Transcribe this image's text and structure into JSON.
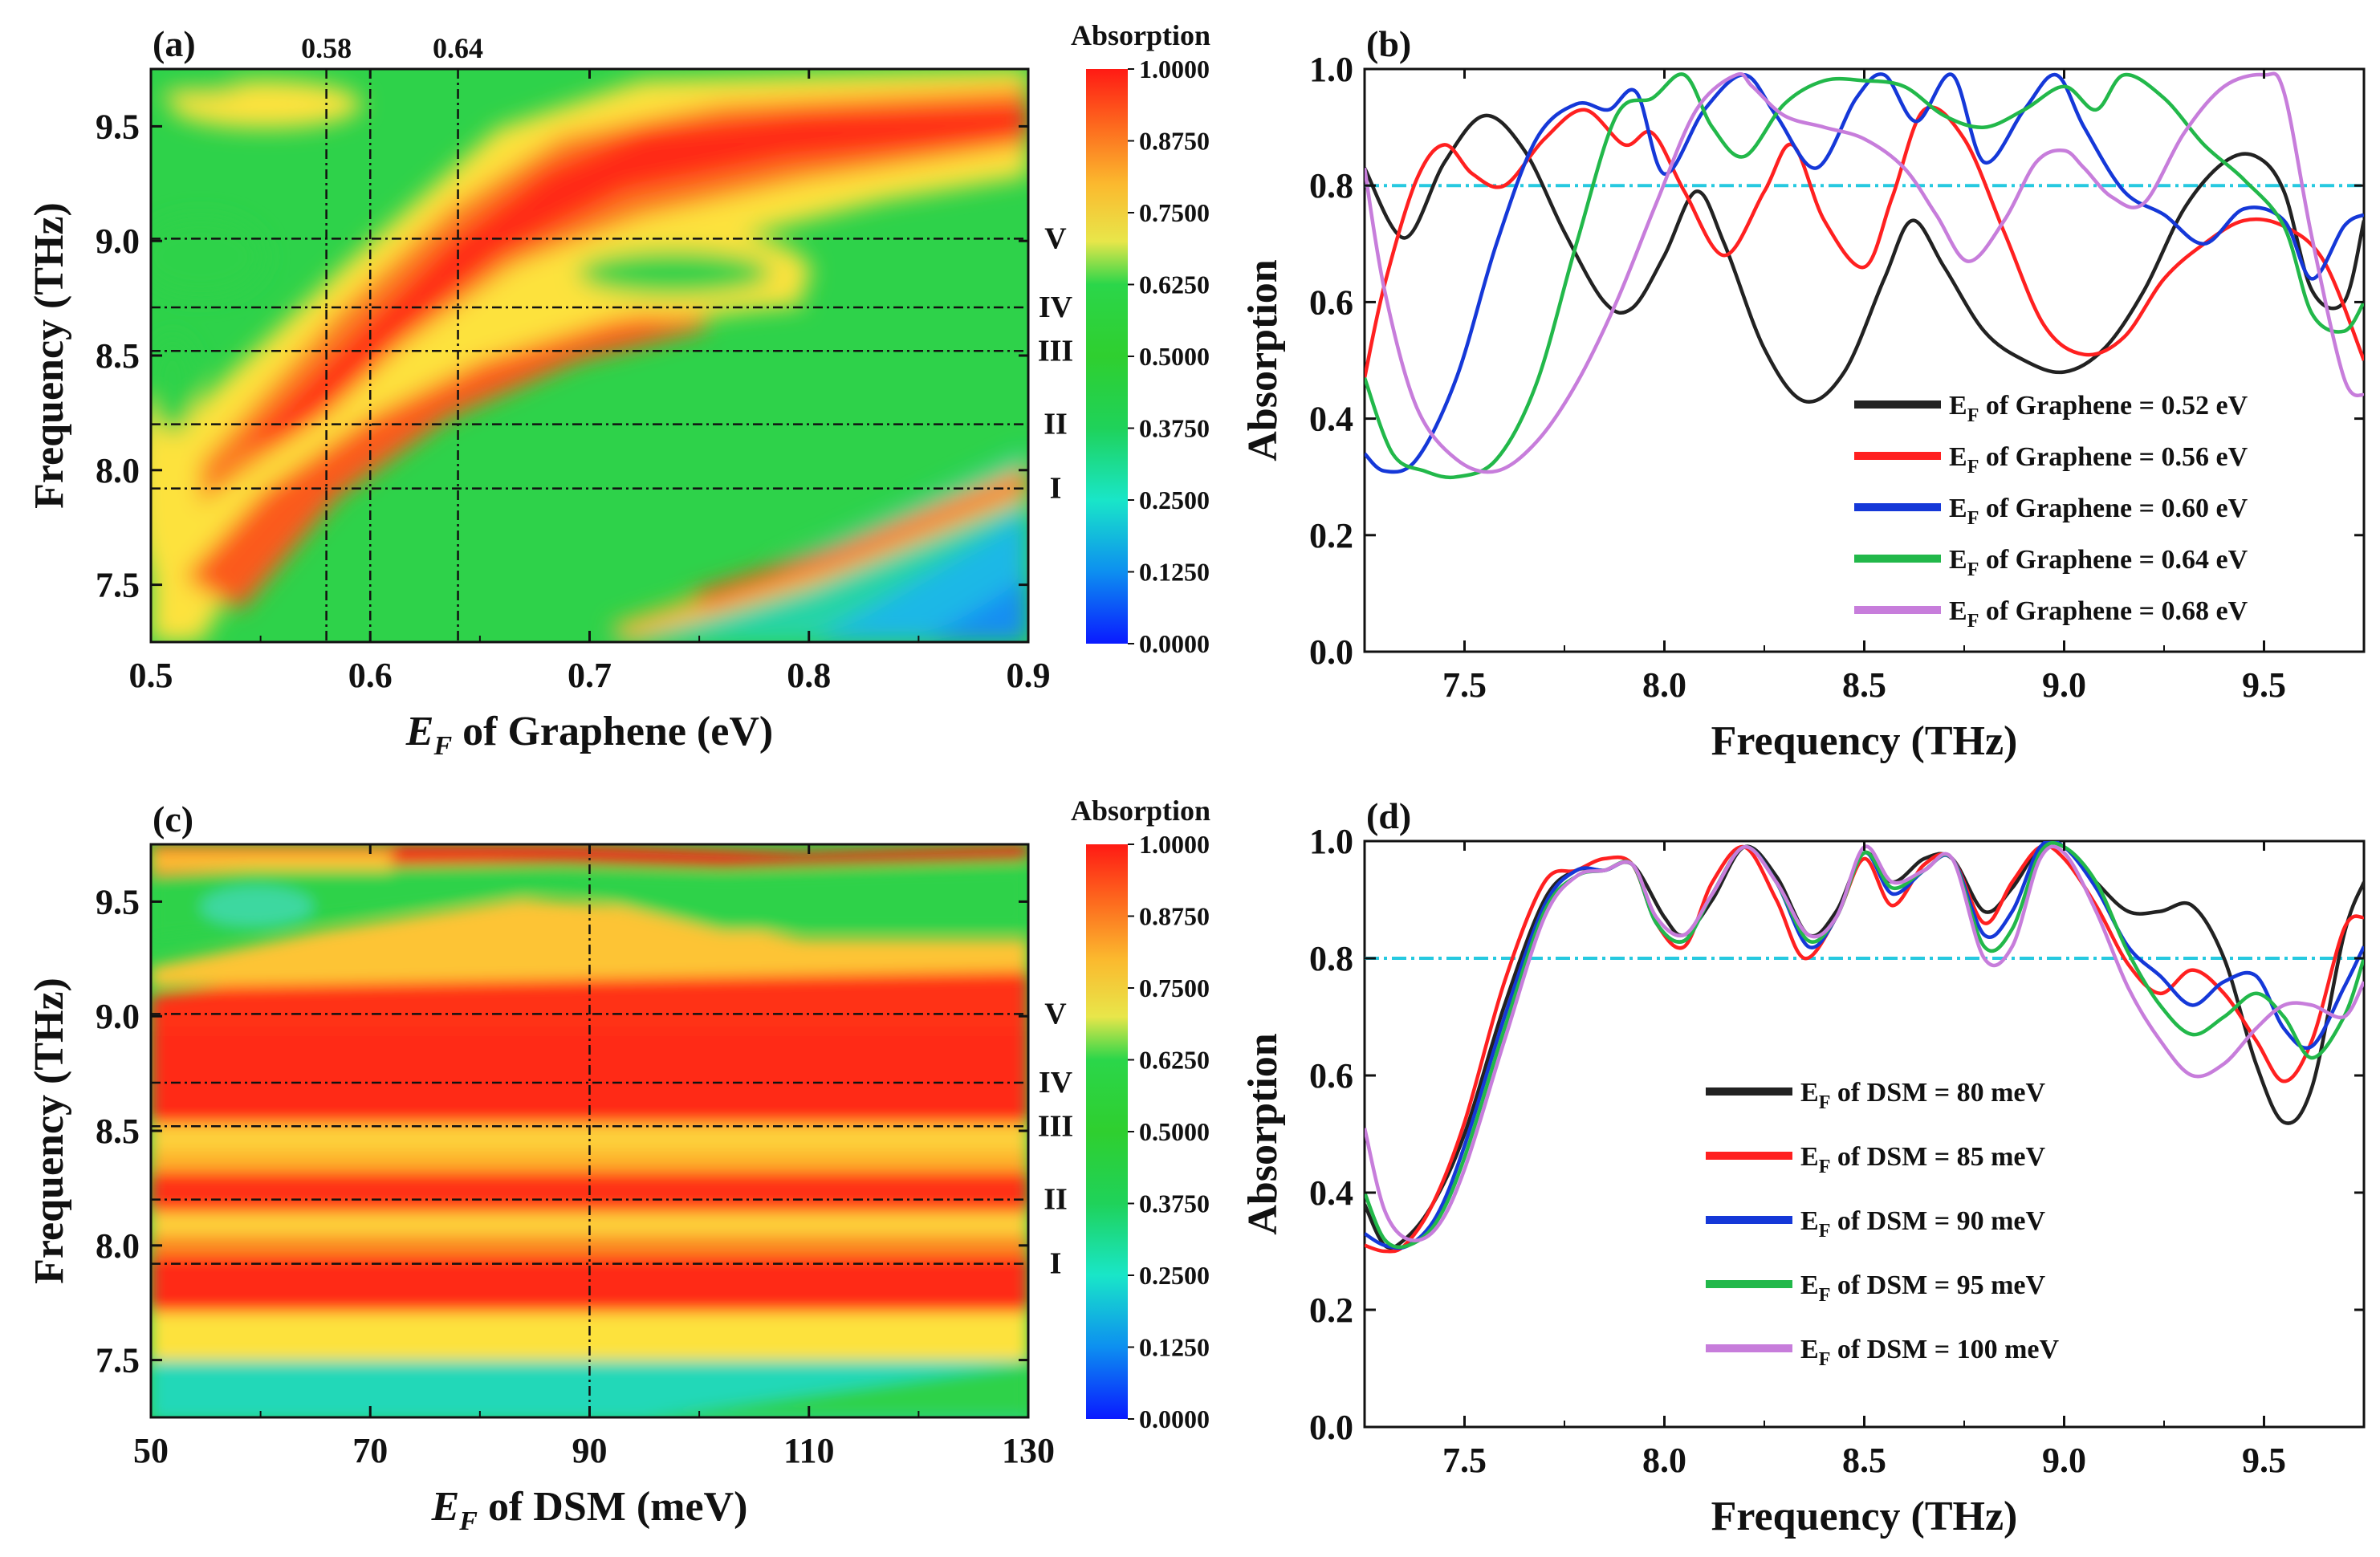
{
  "chart_data": [
    {
      "id": "a",
      "type": "heatmap",
      "panel_label": "(a)",
      "title": "",
      "xlabel": "E_F of Graphene (eV)",
      "xlabel_parts": {
        "sym": "E",
        "sub": "F",
        "rest": " of Graphene (eV)"
      },
      "ylabel": "Frequency (THz)",
      "xlim": [
        0.5,
        0.9
      ],
      "ylim": [
        7.25,
        9.75
      ],
      "x_ticks": [
        "0.5",
        "0.6",
        "0.7",
        "0.8",
        "0.9"
      ],
      "y_ticks": [
        "7.5",
        "8.0",
        "8.5",
        "9.0",
        "9.5"
      ],
      "colorbar": {
        "title": "Absorption",
        "range": [
          0,
          1
        ],
        "ticks": [
          "0.0000",
          "0.1250",
          "0.2500",
          "0.3750",
          "0.5000",
          "0.6250",
          "0.7500",
          "0.8750",
          "1.0000"
        ],
        "colors": [
          "#0a1aff",
          "#0d8ff0",
          "#19e6c8",
          "#1fd25a",
          "#2fcf2f",
          "#e8e64a",
          "#fbb92e",
          "#fd6a1e",
          "#ff1a14"
        ]
      },
      "vertical_lines": [
        {
          "x": 0.58,
          "label": "0.58"
        },
        {
          "x": 0.6,
          "label": ""
        },
        {
          "x": 0.64,
          "label": "0.64"
        }
      ],
      "horizontal_lines": [
        {
          "y": 7.92,
          "label": "I"
        },
        {
          "y": 8.2,
          "label": "II"
        },
        {
          "y": 8.52,
          "label": "III"
        },
        {
          "y": 8.71,
          "label": "IV"
        },
        {
          "y": 9.01,
          "label": "V"
        }
      ]
    },
    {
      "id": "b",
      "type": "line",
      "panel_label": "(b)",
      "xlabel": "Frequency (THz)",
      "ylabel": "Absorption",
      "xlim": [
        7.25,
        9.75
      ],
      "ylim": [
        0,
        1
      ],
      "x_ticks": [
        "7.5",
        "8.0",
        "8.5",
        "9.0",
        "9.5"
      ],
      "y_ticks": [
        "0.0",
        "0.2",
        "0.4",
        "0.6",
        "0.8",
        "1.0"
      ],
      "reference_line": {
        "y": 0.8,
        "color": "#26c9e0"
      },
      "legend_position": "lower-right",
      "series": [
        {
          "name": "E_F of Graphene = 0.52 eV",
          "legend_text": " of Graphene = 0.52 eV",
          "color": "#222222",
          "x": [
            7.25,
            7.35,
            7.45,
            7.55,
            7.65,
            7.75,
            7.85,
            7.92,
            8.0,
            8.08,
            8.15,
            8.25,
            8.35,
            8.45,
            8.55,
            8.62,
            8.7,
            8.8,
            8.9,
            9.0,
            9.1,
            9.2,
            9.3,
            9.4,
            9.48,
            9.55,
            9.62,
            9.7,
            9.75
          ],
          "y": [
            0.83,
            0.71,
            0.84,
            0.92,
            0.86,
            0.72,
            0.6,
            0.59,
            0.68,
            0.79,
            0.7,
            0.52,
            0.43,
            0.48,
            0.64,
            0.74,
            0.66,
            0.55,
            0.5,
            0.48,
            0.52,
            0.62,
            0.76,
            0.84,
            0.85,
            0.79,
            0.62,
            0.6,
            0.74
          ]
        },
        {
          "name": "E_F of Graphene = 0.56 eV",
          "legend_text": " of Graphene = 0.56 eV",
          "color": "#ff2020",
          "x": [
            7.25,
            7.3,
            7.38,
            7.45,
            7.52,
            7.6,
            7.7,
            7.8,
            7.9,
            7.97,
            8.05,
            8.15,
            8.25,
            8.32,
            8.4,
            8.5,
            8.57,
            8.65,
            8.75,
            8.85,
            8.95,
            9.05,
            9.15,
            9.25,
            9.35,
            9.45,
            9.55,
            9.65,
            9.75
          ],
          "y": [
            0.47,
            0.63,
            0.81,
            0.87,
            0.82,
            0.8,
            0.88,
            0.93,
            0.87,
            0.89,
            0.79,
            0.68,
            0.79,
            0.87,
            0.74,
            0.66,
            0.78,
            0.93,
            0.88,
            0.72,
            0.56,
            0.51,
            0.54,
            0.64,
            0.7,
            0.74,
            0.73,
            0.67,
            0.5
          ]
        },
        {
          "name": "E_F of Graphene = 0.60 eV",
          "legend_text": " of Graphene = 0.60 eV",
          "color": "#1538d8",
          "x": [
            7.25,
            7.3,
            7.38,
            7.48,
            7.58,
            7.68,
            7.78,
            7.86,
            7.93,
            8.0,
            8.1,
            8.2,
            8.28,
            8.38,
            8.48,
            8.55,
            8.63,
            8.72,
            8.8,
            8.9,
            8.98,
            9.05,
            9.15,
            9.25,
            9.35,
            9.45,
            9.55,
            9.62,
            9.7,
            9.75
          ],
          "y": [
            0.34,
            0.31,
            0.33,
            0.47,
            0.7,
            0.88,
            0.94,
            0.93,
            0.96,
            0.82,
            0.93,
            0.99,
            0.92,
            0.83,
            0.95,
            0.99,
            0.91,
            0.99,
            0.84,
            0.93,
            0.99,
            0.9,
            0.79,
            0.75,
            0.7,
            0.76,
            0.74,
            0.64,
            0.73,
            0.75
          ]
        },
        {
          "name": "E_F of Graphene = 0.64 eV",
          "legend_text": " of Graphene = 0.64 eV",
          "color": "#22b84a",
          "x": [
            7.25,
            7.32,
            7.4,
            7.48,
            7.58,
            7.68,
            7.78,
            7.88,
            7.97,
            8.05,
            8.12,
            8.2,
            8.3,
            8.4,
            8.5,
            8.6,
            8.7,
            8.8,
            8.9,
            9.0,
            9.08,
            9.15,
            9.25,
            9.35,
            9.45,
            9.55,
            9.62,
            9.7,
            9.75
          ],
          "y": [
            0.47,
            0.34,
            0.31,
            0.3,
            0.33,
            0.46,
            0.7,
            0.92,
            0.95,
            0.99,
            0.9,
            0.85,
            0.94,
            0.98,
            0.98,
            0.97,
            0.92,
            0.9,
            0.93,
            0.97,
            0.93,
            0.99,
            0.95,
            0.87,
            0.81,
            0.73,
            0.58,
            0.55,
            0.6
          ]
        },
        {
          "name": "E_F of Graphene = 0.68 eV",
          "legend_text": " of Graphene = 0.68 eV",
          "color": "#c77ddb",
          "x": [
            7.25,
            7.3,
            7.38,
            7.48,
            7.58,
            7.68,
            7.78,
            7.88,
            7.98,
            8.08,
            8.18,
            8.22,
            8.3,
            8.4,
            8.5,
            8.6,
            8.68,
            8.76,
            8.85,
            8.93,
            9.0,
            9.05,
            9.12,
            9.2,
            9.3,
            9.4,
            9.5,
            9.55,
            9.62,
            9.7,
            9.75
          ],
          "y": [
            0.83,
            0.62,
            0.42,
            0.33,
            0.31,
            0.36,
            0.46,
            0.6,
            0.77,
            0.93,
            0.99,
            0.97,
            0.92,
            0.9,
            0.88,
            0.83,
            0.75,
            0.67,
            0.74,
            0.84,
            0.86,
            0.83,
            0.78,
            0.77,
            0.89,
            0.97,
            0.99,
            0.96,
            0.71,
            0.47,
            0.44
          ]
        }
      ]
    },
    {
      "id": "c",
      "type": "heatmap",
      "panel_label": "(c)",
      "xlabel": "E_F of DSM (meV)",
      "xlabel_parts": {
        "sym": "E",
        "sub": "F",
        "rest": " of DSM (meV)"
      },
      "ylabel": "Frequency (THz)",
      "xlim": [
        50,
        130
      ],
      "ylim": [
        7.25,
        9.75
      ],
      "x_ticks": [
        "50",
        "70",
        "90",
        "110",
        "130"
      ],
      "y_ticks": [
        "7.5",
        "8.0",
        "8.5",
        "9.0",
        "9.5"
      ],
      "colorbar": {
        "title": "Absorption",
        "range": [
          0,
          1
        ],
        "ticks": [
          "0.0000",
          "0.1250",
          "0.2500",
          "0.3750",
          "0.5000",
          "0.6250",
          "0.7500",
          "0.8750",
          "1.0000"
        ],
        "colors": [
          "#0a1aff",
          "#0d8ff0",
          "#19e6c8",
          "#1fd25a",
          "#2fcf2f",
          "#e8e64a",
          "#fbb92e",
          "#fd6a1e",
          "#ff1a14"
        ]
      },
      "vertical_lines": [
        {
          "x": 90,
          "label": ""
        }
      ],
      "horizontal_lines": [
        {
          "y": 7.92,
          "label": "I"
        },
        {
          "y": 8.2,
          "label": "II"
        },
        {
          "y": 8.52,
          "label": "III"
        },
        {
          "y": 8.71,
          "label": "IV"
        },
        {
          "y": 9.01,
          "label": "V"
        }
      ]
    },
    {
      "id": "d",
      "type": "line",
      "panel_label": "(d)",
      "xlabel": "Frequency (THz)",
      "ylabel": "Absorption",
      "xlim": [
        7.25,
        9.75
      ],
      "ylim": [
        0,
        1
      ],
      "x_ticks": [
        "7.5",
        "8.0",
        "8.5",
        "9.0",
        "9.5"
      ],
      "y_ticks": [
        "0.0",
        "0.2",
        "0.4",
        "0.6",
        "0.8",
        "1.0"
      ],
      "reference_line": {
        "y": 0.8,
        "color": "#26c9e0"
      },
      "legend_position": "lower-right",
      "series": [
        {
          "name": "E_F of DSM = 80 meV",
          "legend_text": " of DSM = 80 meV",
          "color": "#222222",
          "x": [
            7.25,
            7.3,
            7.35,
            7.42,
            7.5,
            7.6,
            7.7,
            7.78,
            7.85,
            7.92,
            8.0,
            8.05,
            8.12,
            8.2,
            8.28,
            8.36,
            8.43,
            8.5,
            8.57,
            8.65,
            8.72,
            8.8,
            8.87,
            8.94,
            9.0,
            9.08,
            9.16,
            9.24,
            9.32,
            9.4,
            9.48,
            9.55,
            9.62,
            9.7,
            9.75
          ],
          "y": [
            0.38,
            0.31,
            0.32,
            0.38,
            0.5,
            0.72,
            0.9,
            0.95,
            0.95,
            0.96,
            0.87,
            0.84,
            0.9,
            0.99,
            0.94,
            0.84,
            0.88,
            0.98,
            0.93,
            0.97,
            0.97,
            0.88,
            0.92,
            0.99,
            0.99,
            0.93,
            0.88,
            0.88,
            0.89,
            0.8,
            0.62,
            0.52,
            0.58,
            0.84,
            0.93
          ]
        },
        {
          "name": "E_F of DSM = 85 meV",
          "legend_text": " of DSM = 85 meV",
          "color": "#ff2020",
          "x": [
            7.25,
            7.3,
            7.35,
            7.42,
            7.5,
            7.6,
            7.7,
            7.78,
            7.85,
            7.92,
            7.98,
            8.05,
            8.12,
            8.2,
            8.28,
            8.35,
            8.43,
            8.5,
            8.57,
            8.65,
            8.72,
            8.8,
            8.87,
            8.94,
            9.0,
            9.08,
            9.16,
            9.24,
            9.32,
            9.4,
            9.48,
            9.55,
            9.62,
            9.7,
            9.75
          ],
          "y": [
            0.31,
            0.3,
            0.31,
            0.38,
            0.52,
            0.76,
            0.93,
            0.95,
            0.97,
            0.96,
            0.86,
            0.82,
            0.93,
            0.99,
            0.9,
            0.8,
            0.87,
            0.97,
            0.89,
            0.96,
            0.97,
            0.86,
            0.93,
            0.99,
            0.97,
            0.89,
            0.79,
            0.74,
            0.78,
            0.74,
            0.66,
            0.59,
            0.66,
            0.85,
            0.87
          ]
        },
        {
          "name": "E_F of DSM = 90 meV",
          "legend_text": " of DSM = 90 meV",
          "color": "#1538d8",
          "x": [
            7.25,
            7.3,
            7.36,
            7.43,
            7.5,
            7.6,
            7.7,
            7.78,
            7.85,
            7.92,
            7.98,
            8.05,
            8.12,
            8.2,
            8.28,
            8.36,
            8.43,
            8.5,
            8.57,
            8.65,
            8.72,
            8.8,
            8.87,
            8.94,
            9.0,
            9.08,
            9.16,
            9.24,
            9.32,
            9.4,
            9.48,
            9.55,
            9.62,
            9.7,
            9.75
          ],
          "y": [
            0.33,
            0.31,
            0.31,
            0.36,
            0.48,
            0.7,
            0.89,
            0.95,
            0.95,
            0.96,
            0.86,
            0.83,
            0.91,
            0.99,
            0.93,
            0.82,
            0.87,
            0.98,
            0.91,
            0.95,
            0.97,
            0.84,
            0.88,
            0.99,
            0.99,
            0.92,
            0.82,
            0.77,
            0.72,
            0.76,
            0.77,
            0.68,
            0.65,
            0.75,
            0.82
          ]
        },
        {
          "name": "E_F of DSM = 95 meV",
          "legend_text": " of DSM = 95 meV",
          "color": "#22b84a",
          "x": [
            7.25,
            7.3,
            7.36,
            7.43,
            7.5,
            7.6,
            7.7,
            7.78,
            7.85,
            7.92,
            7.98,
            8.05,
            8.12,
            8.2,
            8.28,
            8.36,
            8.43,
            8.5,
            8.57,
            8.65,
            8.72,
            8.8,
            8.87,
            8.94,
            9.0,
            9.08,
            9.16,
            9.24,
            9.32,
            9.4,
            9.48,
            9.55,
            9.62,
            9.7,
            9.75
          ],
          "y": [
            0.4,
            0.32,
            0.31,
            0.35,
            0.46,
            0.68,
            0.88,
            0.94,
            0.95,
            0.96,
            0.86,
            0.83,
            0.91,
            0.99,
            0.93,
            0.83,
            0.87,
            0.98,
            0.92,
            0.95,
            0.97,
            0.82,
            0.85,
            0.98,
            0.99,
            0.93,
            0.81,
            0.72,
            0.67,
            0.7,
            0.74,
            0.7,
            0.63,
            0.7,
            0.8
          ]
        },
        {
          "name": "E_F of DSM = 100 meV",
          "legend_text": " of DSM = 100 meV",
          "color": "#c77ddb",
          "x": [
            7.25,
            7.3,
            7.36,
            7.43,
            7.5,
            7.6,
            7.7,
            7.78,
            7.85,
            7.92,
            7.98,
            8.05,
            8.12,
            8.2,
            8.28,
            8.36,
            8.43,
            8.5,
            8.57,
            8.65,
            8.72,
            8.8,
            8.87,
            8.94,
            9.0,
            9.08,
            9.16,
            9.24,
            9.32,
            9.4,
            9.48,
            9.55,
            9.62,
            9.7,
            9.75
          ],
          "y": [
            0.51,
            0.37,
            0.32,
            0.34,
            0.44,
            0.66,
            0.87,
            0.94,
            0.95,
            0.96,
            0.87,
            0.84,
            0.91,
            0.99,
            0.93,
            0.84,
            0.87,
            0.99,
            0.93,
            0.95,
            0.97,
            0.8,
            0.82,
            0.97,
            0.98,
            0.88,
            0.75,
            0.66,
            0.6,
            0.62,
            0.68,
            0.72,
            0.72,
            0.7,
            0.76
          ]
        }
      ]
    }
  ]
}
